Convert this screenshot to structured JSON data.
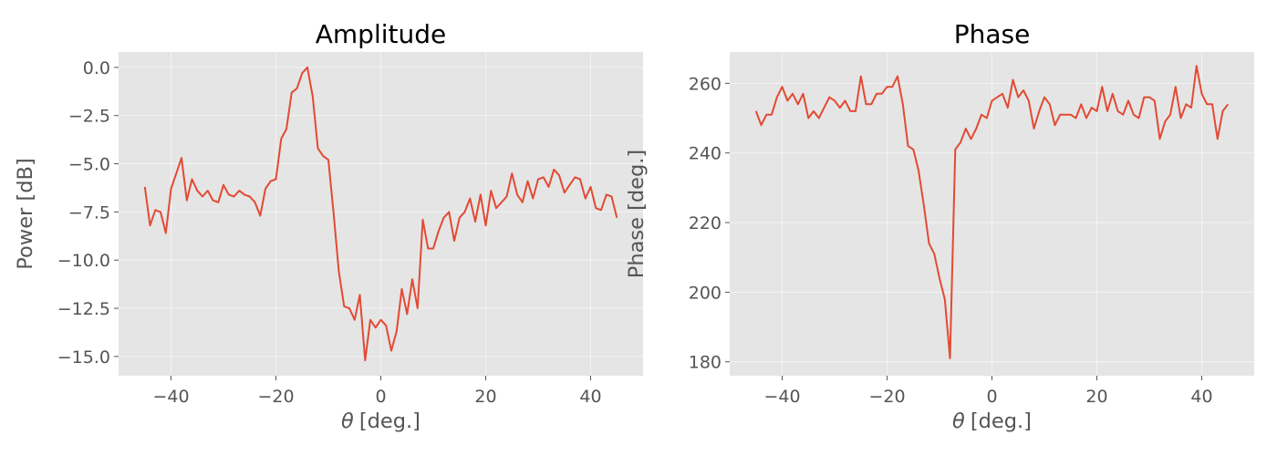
{
  "chart_data": [
    {
      "type": "line",
      "title": "Amplitude",
      "xlabel_symbol": "θ",
      "xlabel_unit": "[deg.]",
      "ylabel": "Power [dB]",
      "xlim": [
        -50,
        50
      ],
      "ylim": [
        -16.0,
        0.8
      ],
      "xticks": [
        -40,
        -20,
        0,
        20,
        40
      ],
      "yticks": [
        0.0,
        -2.5,
        -5.0,
        -7.5,
        -10.0,
        -12.5,
        -15.0
      ],
      "ytick_labels": [
        "0.0",
        "−2.5",
        "−5.0",
        "−7.5",
        "−10.0",
        "−12.5",
        "−15.0"
      ],
      "xtick_labels": [
        "−40",
        "−20",
        "0",
        "20",
        "40"
      ],
      "grid": true,
      "series": [
        {
          "color": "#e24a33",
          "x": [
            -45,
            -44,
            -43,
            -42,
            -41,
            -40,
            -39,
            -38,
            -37,
            -36,
            -35,
            -34,
            -33,
            -32,
            -31,
            -30,
            -29,
            -28,
            -27,
            -26,
            -25,
            -24,
            -23,
            -22,
            -21,
            -20,
            -19,
            -18,
            -17,
            -16,
            -15,
            -14,
            -13,
            -12,
            -11,
            -10,
            -9,
            -8,
            -7,
            -6,
            -5,
            -4,
            -3,
            -2,
            -1,
            0,
            1,
            2,
            3,
            4,
            5,
            6,
            7,
            8,
            9,
            10,
            11,
            12,
            13,
            14,
            15,
            16,
            17,
            18,
            19,
            20,
            21,
            22,
            23,
            24,
            25,
            26,
            27,
            28,
            29,
            30,
            31,
            32,
            33,
            34,
            35,
            36,
            37,
            38,
            39,
            40,
            41,
            42,
            43,
            44,
            45
          ],
          "y": [
            -6.2,
            -8.2,
            -7.4,
            -7.5,
            -8.6,
            -6.3,
            -5.5,
            -4.7,
            -6.9,
            -5.8,
            -6.4,
            -6.7,
            -6.4,
            -6.9,
            -7.0,
            -6.1,
            -6.6,
            -6.7,
            -6.4,
            -6.6,
            -6.7,
            -7.0,
            -7.7,
            -6.3,
            -5.9,
            -5.8,
            -3.7,
            -3.2,
            -1.3,
            -1.1,
            -0.3,
            0.0,
            -1.5,
            -4.2,
            -4.6,
            -4.8,
            -7.6,
            -10.6,
            -12.4,
            -12.5,
            -13.1,
            -11.8,
            -15.2,
            -13.1,
            -13.5,
            -13.1,
            -13.4,
            -14.7,
            -13.7,
            -11.5,
            -12.8,
            -11.0,
            -12.5,
            -7.9,
            -9.4,
            -9.4,
            -8.5,
            -7.8,
            -7.5,
            -9.0,
            -7.8,
            -7.5,
            -6.8,
            -8.0,
            -6.6,
            -8.2,
            -6.4,
            -7.3,
            -7.0,
            -6.7,
            -5.5,
            -6.6,
            -7.0,
            -5.9,
            -6.8,
            -5.8,
            -5.7,
            -6.2,
            -5.3,
            -5.6,
            -6.5,
            -6.1,
            -5.7,
            -5.8,
            -6.8,
            -6.2,
            -7.3,
            -7.4,
            -6.6,
            -6.7,
            -7.8
          ]
        }
      ]
    },
    {
      "type": "line",
      "title": "Phase",
      "xlabel_symbol": "θ",
      "xlabel_unit": "[deg.]",
      "ylabel": "Phase [deg.]",
      "xlim": [
        -50,
        50
      ],
      "ylim": [
        176,
        269
      ],
      "xticks": [
        -40,
        -20,
        0,
        20,
        40
      ],
      "yticks": [
        180,
        200,
        220,
        240,
        260
      ],
      "ytick_labels": [
        "180",
        "200",
        "220",
        "240",
        "260"
      ],
      "xtick_labels": [
        "−40",
        "−20",
        "0",
        "20",
        "40"
      ],
      "grid": true,
      "series": [
        {
          "color": "#e24a33",
          "x": [
            -45,
            -44,
            -43,
            -42,
            -41,
            -40,
            -39,
            -38,
            -37,
            -36,
            -35,
            -34,
            -33,
            -32,
            -31,
            -30,
            -29,
            -28,
            -27,
            -26,
            -25,
            -24,
            -23,
            -22,
            -21,
            -20,
            -19,
            -18,
            -17,
            -16,
            -15,
            -14,
            -13,
            -12,
            -11,
            -10,
            -9,
            -8,
            -7,
            -6,
            -5,
            -4,
            -3,
            -2,
            -1,
            0,
            1,
            2,
            3,
            4,
            5,
            6,
            7,
            8,
            9,
            10,
            11,
            12,
            13,
            14,
            15,
            16,
            17,
            18,
            19,
            20,
            21,
            22,
            23,
            24,
            25,
            26,
            27,
            28,
            29,
            30,
            31,
            32,
            33,
            34,
            35,
            36,
            37,
            38,
            39,
            40,
            41,
            42,
            43,
            44,
            45
          ],
          "y": [
            252,
            248,
            251,
            251,
            256,
            259,
            255,
            257,
            254,
            257,
            250,
            252,
            250,
            253,
            256,
            255,
            253,
            255,
            252,
            252,
            262,
            254,
            254,
            257,
            257,
            259,
            259,
            262,
            254,
            242,
            241,
            235,
            225,
            214,
            211,
            204,
            198,
            181,
            241,
            243,
            247,
            244,
            247,
            251,
            250,
            255,
            256,
            257,
            253,
            261,
            256,
            258,
            255,
            247,
            252,
            256,
            254,
            248,
            251,
            251,
            251,
            250,
            254,
            250,
            253,
            252,
            259,
            252,
            257,
            252,
            251,
            255,
            251,
            250,
            256,
            256,
            255,
            244,
            249,
            251,
            259,
            250,
            254,
            253,
            265,
            257,
            254,
            254,
            244,
            252,
            254
          ]
        }
      ]
    }
  ]
}
